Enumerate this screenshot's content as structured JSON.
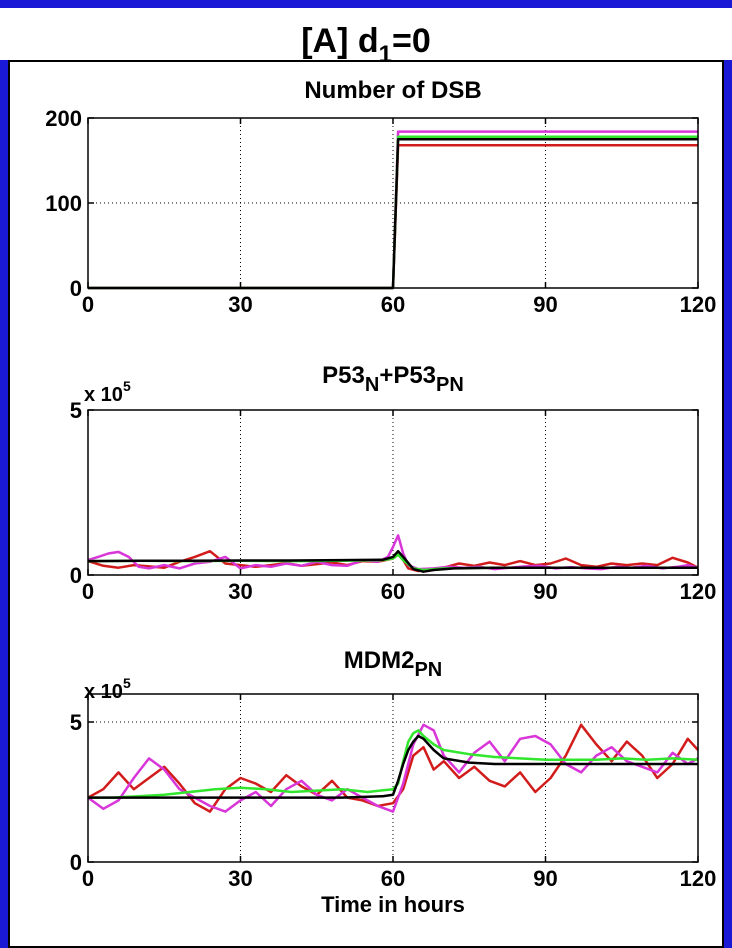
{
  "figure": {
    "title_main": "[A] d",
    "title_sub": "1",
    "title_tail": "=0"
  },
  "colors": {
    "background": "#1a1ad6",
    "red": "#d21c1c",
    "green": "#31e62c",
    "magenta": "#d936d9",
    "black": "#000000"
  },
  "chart_data": [
    {
      "type": "line",
      "title": "Number of DSB",
      "title_parts": [
        "Number of DSB"
      ],
      "exponent_label": "",
      "xlim": [
        0,
        120
      ],
      "ylim": [
        0,
        200
      ],
      "xticks": [
        "0",
        "30",
        "60",
        "90",
        "120"
      ],
      "yticks": [
        "0",
        "100",
        "200"
      ],
      "xlabel": "",
      "grid": true,
      "series": [
        {
          "color": "red",
          "x": [
            0,
            60,
            61,
            120
          ],
          "y": [
            0,
            0,
            168,
            168
          ]
        },
        {
          "color": "magenta",
          "x": [
            0,
            60,
            61,
            120
          ],
          "y": [
            0,
            0,
            184,
            184
          ]
        },
        {
          "color": "green",
          "x": [
            0,
            60,
            61,
            120
          ],
          "y": [
            0,
            0,
            178,
            178
          ]
        },
        {
          "color": "black",
          "x": [
            0,
            60,
            61,
            120
          ],
          "y": [
            0,
            0,
            175,
            175
          ]
        }
      ]
    },
    {
      "type": "line",
      "title": "P53N+P53PN",
      "title_parts": [
        "P53",
        "N",
        "+P53",
        "PN"
      ],
      "exponent_label": "x 10",
      "exponent_power": "5",
      "xlim": [
        0,
        120
      ],
      "ylim": [
        0,
        5
      ],
      "xticks": [
        "0",
        "30",
        "60",
        "90",
        "120"
      ],
      "yticks": [
        "0",
        "5"
      ],
      "xlabel": "",
      "grid": true,
      "series": [
        {
          "color": "red",
          "x": [
            0,
            3,
            6,
            9,
            12,
            15,
            18,
            21,
            24,
            27,
            30,
            33,
            36,
            39,
            42,
            45,
            48,
            51,
            54,
            57,
            60,
            61,
            62,
            63,
            65,
            67,
            70,
            73,
            76,
            79,
            82,
            85,
            88,
            91,
            94,
            97,
            100,
            103,
            106,
            109,
            112,
            115,
            118,
            120
          ],
          "y": [
            0.42,
            0.28,
            0.22,
            0.3,
            0.26,
            0.22,
            0.4,
            0.55,
            0.72,
            0.35,
            0.3,
            0.25,
            0.3,
            0.36,
            0.28,
            0.33,
            0.38,
            0.3,
            0.42,
            0.4,
            0.5,
            0.62,
            0.45,
            0.2,
            0.12,
            0.18,
            0.22,
            0.35,
            0.28,
            0.38,
            0.3,
            0.42,
            0.3,
            0.35,
            0.5,
            0.3,
            0.25,
            0.35,
            0.3,
            0.35,
            0.3,
            0.52,
            0.38,
            0.22
          ]
        },
        {
          "color": "magenta",
          "x": [
            0,
            2,
            4,
            6,
            8,
            10,
            12,
            15,
            18,
            21,
            24,
            27,
            30,
            33,
            36,
            39,
            42,
            45,
            48,
            51,
            54,
            57,
            59,
            60,
            61,
            62,
            63,
            65,
            68,
            71,
            74,
            77,
            80,
            83,
            86,
            89,
            92,
            95,
            98,
            101,
            104,
            107,
            110,
            113,
            116,
            118,
            120
          ],
          "y": [
            0.45,
            0.55,
            0.65,
            0.7,
            0.55,
            0.25,
            0.2,
            0.3,
            0.2,
            0.35,
            0.4,
            0.55,
            0.2,
            0.3,
            0.25,
            0.35,
            0.28,
            0.4,
            0.3,
            0.28,
            0.45,
            0.4,
            0.55,
            0.85,
            1.2,
            0.65,
            0.3,
            0.18,
            0.2,
            0.25,
            0.22,
            0.25,
            0.18,
            0.22,
            0.26,
            0.28,
            0.2,
            0.24,
            0.2,
            0.18,
            0.25,
            0.22,
            0.28,
            0.2,
            0.25,
            0.3,
            0.22
          ]
        },
        {
          "color": "green",
          "x": [
            0,
            10,
            20,
            30,
            40,
            50,
            58,
            60,
            61,
            62,
            64,
            66,
            70,
            80,
            90,
            100,
            110,
            120
          ],
          "y": [
            0.42,
            0.43,
            0.42,
            0.43,
            0.42,
            0.43,
            0.45,
            0.5,
            0.62,
            0.45,
            0.2,
            0.15,
            0.2,
            0.22,
            0.22,
            0.22,
            0.22,
            0.22
          ]
        },
        {
          "color": "black",
          "x": [
            0,
            10,
            20,
            30,
            40,
            50,
            58,
            60,
            61,
            62,
            64,
            66,
            68,
            72,
            80,
            90,
            100,
            110,
            120
          ],
          "y": [
            0.42,
            0.43,
            0.43,
            0.44,
            0.44,
            0.45,
            0.46,
            0.55,
            0.72,
            0.55,
            0.18,
            0.1,
            0.15,
            0.2,
            0.22,
            0.22,
            0.22,
            0.22,
            0.22
          ]
        }
      ]
    },
    {
      "type": "line",
      "title": "MDM2PN",
      "title_parts": [
        "MDM2",
        "PN"
      ],
      "exponent_label": "x 10",
      "exponent_power": "5",
      "xlim": [
        0,
        120
      ],
      "ylim": [
        0,
        6
      ],
      "xticks": [
        "0",
        "30",
        "60",
        "90",
        "120"
      ],
      "yticks": [
        "0",
        "5"
      ],
      "xlabel": "Time in hours",
      "grid": true,
      "series": [
        {
          "color": "red",
          "x": [
            0,
            3,
            6,
            9,
            12,
            15,
            18,
            21,
            24,
            27,
            30,
            33,
            36,
            39,
            42,
            45,
            48,
            51,
            54,
            57,
            60,
            62,
            64,
            66,
            68,
            70,
            73,
            76,
            79,
            82,
            85,
            88,
            91,
            94,
            97,
            100,
            103,
            106,
            109,
            112,
            115,
            118,
            120
          ],
          "y": [
            2.3,
            2.6,
            3.2,
            2.6,
            3.0,
            3.4,
            2.8,
            2.1,
            1.8,
            2.6,
            3.0,
            2.8,
            2.5,
            3.1,
            2.7,
            2.4,
            2.9,
            2.3,
            2.2,
            2.0,
            2.1,
            2.6,
            3.8,
            4.1,
            3.3,
            3.6,
            3.0,
            3.4,
            2.9,
            2.7,
            3.2,
            2.5,
            3.0,
            3.8,
            4.9,
            4.2,
            3.6,
            4.3,
            3.8,
            3.0,
            3.5,
            4.4,
            4.0
          ]
        },
        {
          "color": "magenta",
          "x": [
            0,
            3,
            6,
            9,
            12,
            15,
            18,
            21,
            24,
            27,
            30,
            33,
            36,
            39,
            42,
            45,
            48,
            51,
            54,
            57,
            60,
            62,
            64,
            66,
            68,
            70,
            73,
            76,
            79,
            82,
            85,
            88,
            91,
            94,
            97,
            100,
            103,
            106,
            109,
            112,
            115,
            118,
            120
          ],
          "y": [
            2.3,
            1.9,
            2.2,
            3.0,
            3.7,
            3.3,
            2.6,
            2.3,
            2.0,
            1.8,
            2.2,
            2.5,
            2.0,
            2.6,
            2.9,
            2.4,
            2.2,
            2.6,
            2.3,
            2.0,
            1.8,
            2.8,
            4.2,
            4.9,
            4.7,
            3.8,
            3.2,
            3.9,
            4.3,
            3.6,
            4.4,
            4.5,
            4.2,
            3.5,
            3.2,
            3.8,
            4.1,
            3.6,
            3.4,
            3.2,
            3.9,
            3.5,
            3.7
          ]
        },
        {
          "color": "green",
          "x": [
            0,
            5,
            10,
            15,
            20,
            25,
            30,
            35,
            40,
            45,
            50,
            55,
            60,
            61,
            62,
            63,
            64,
            65,
            66,
            68,
            70,
            75,
            80,
            85,
            90,
            95,
            100,
            105,
            110,
            115,
            120
          ],
          "y": [
            2.3,
            2.3,
            2.35,
            2.4,
            2.5,
            2.6,
            2.65,
            2.6,
            2.5,
            2.55,
            2.6,
            2.5,
            2.6,
            2.8,
            3.6,
            4.3,
            4.6,
            4.7,
            4.5,
            4.2,
            4.0,
            3.85,
            3.75,
            3.7,
            3.65,
            3.65,
            3.65,
            3.7,
            3.65,
            3.7,
            3.65
          ]
        },
        {
          "color": "black",
          "x": [
            0,
            10,
            20,
            30,
            40,
            50,
            58,
            60,
            61,
            62,
            63,
            64,
            65,
            66,
            68,
            70,
            75,
            80,
            90,
            100,
            110,
            120
          ],
          "y": [
            2.3,
            2.3,
            2.3,
            2.3,
            2.3,
            2.3,
            2.35,
            2.4,
            2.9,
            3.5,
            4.0,
            4.3,
            4.5,
            4.4,
            4.0,
            3.7,
            3.55,
            3.5,
            3.5,
            3.5,
            3.5,
            3.5
          ]
        }
      ]
    }
  ]
}
